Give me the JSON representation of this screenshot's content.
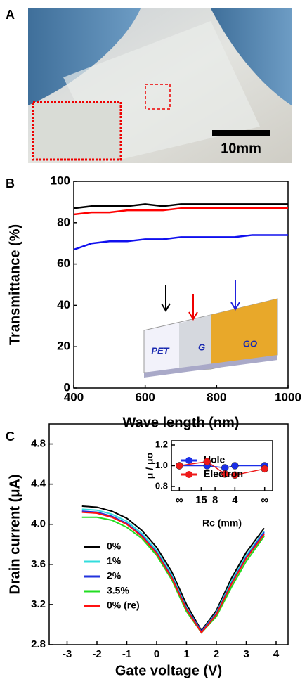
{
  "panel_labels": [
    "A",
    "B",
    "C"
  ],
  "photo": {
    "scale_bar": "10mm"
  },
  "chart_data": [
    {
      "type": "line",
      "xlabel": "Wave length (nm)",
      "ylabel": "Transmittance (%)",
      "xlim": [
        400,
        1000
      ],
      "ylim": [
        0,
        100
      ],
      "xticks": [
        400,
        600,
        800,
        1000
      ],
      "yticks": [
        0,
        20,
        40,
        60,
        80,
        100
      ],
      "x": [
        400,
        450,
        500,
        550,
        600,
        650,
        700,
        750,
        800,
        850,
        900,
        950,
        1000
      ],
      "series": [
        {
          "name": null,
          "color": "#000000",
          "values": [
            87,
            88,
            88,
            88,
            89,
            88,
            89,
            89,
            89,
            89,
            89,
            89,
            89
          ]
        },
        {
          "name": null,
          "color": "#ff0000",
          "values": [
            84,
            85,
            85,
            86,
            86,
            86,
            87,
            87,
            87,
            87,
            87,
            87,
            87
          ]
        },
        {
          "name": null,
          "color": "#1010ee",
          "values": [
            67,
            70,
            71,
            71,
            72,
            72,
            73,
            73,
            73,
            73,
            74,
            74,
            74
          ]
        }
      ],
      "annotations": [
        "PET",
        "G",
        "GO"
      ]
    },
    {
      "type": "line",
      "xlabel": "Gate voltage (V)",
      "ylabel": "Drain current (μA)",
      "xlim": [
        -3.6,
        4.4
      ],
      "ylim": [
        2.8,
        5.0
      ],
      "xticks": [
        -3,
        -2,
        -1,
        0,
        1,
        2,
        3,
        4
      ],
      "yticks": [
        {
          "value": 2.8,
          "label": "2.8"
        },
        {
          "value": 3.2,
          "label": "3.2"
        },
        {
          "value": 3.6,
          "label": "3.6"
        },
        {
          "value": 4.0,
          "label": "4.0"
        },
        {
          "value": 4.4,
          "label": "4.4"
        },
        {
          "value": 4.8,
          "label": "4.8"
        }
      ],
      "x": [
        -2.5,
        -2,
        -1.5,
        -1,
        -0.5,
        0,
        0.5,
        1,
        1.5,
        2,
        2.5,
        3,
        3.6
      ],
      "series": [
        {
          "name": "0%",
          "color": "#000000",
          "values": [
            4.18,
            4.17,
            4.13,
            4.06,
            3.94,
            3.77,
            3.53,
            3.2,
            2.94,
            3.14,
            3.46,
            3.72,
            3.96
          ]
        },
        {
          "name": "1%",
          "color": "#33dddd",
          "values": [
            4.15,
            4.14,
            4.1,
            4.03,
            3.91,
            3.74,
            3.5,
            3.17,
            2.93,
            3.12,
            3.43,
            3.69,
            3.93
          ]
        },
        {
          "name": "2%",
          "color": "#2233dd",
          "values": [
            4.13,
            4.12,
            4.08,
            4.01,
            3.89,
            3.72,
            3.48,
            3.16,
            2.93,
            3.11,
            3.41,
            3.67,
            3.92
          ]
        },
        {
          "name": "3.5%",
          "color": "#22dd22",
          "values": [
            4.07,
            4.07,
            4.04,
            3.97,
            3.86,
            3.69,
            3.45,
            3.13,
            2.92,
            3.08,
            3.37,
            3.63,
            3.88
          ]
        },
        {
          "name": "0% (re)",
          "color": "#ff1111",
          "values": [
            4.12,
            4.11,
            4.07,
            4.0,
            3.88,
            3.71,
            3.47,
            3.15,
            2.92,
            3.1,
            3.4,
            3.66,
            3.9
          ]
        }
      ]
    },
    {
      "type": "line",
      "xlabel": "Rc (mm)",
      "ylabel": "μ / μo",
      "xlim": [
        -0.4,
        4.7
      ],
      "ylim": [
        0.8,
        1.2
      ],
      "xticks": [
        {
          "value": 0,
          "label": "∞"
        },
        {
          "value": 1.1,
          "label": "15"
        },
        {
          "value": 1.8,
          "label": "8"
        },
        {
          "value": 2.8,
          "label": "4"
        },
        {
          "value": 4.3,
          "label": "∞"
        }
      ],
      "yticks": [
        {
          "value": 0.8,
          "label": "0.8"
        },
        {
          "value": 1.0,
          "label": "1.0"
        },
        {
          "value": 1.2,
          "label": "1.2"
        }
      ],
      "x": [
        0,
        1.4,
        2.3,
        2.8,
        4.3
      ],
      "series": [
        {
          "name": "Hole",
          "color": "#1a2ee8",
          "values": [
            1.0,
            1.0,
            0.98,
            1.0,
            1.0
          ]
        },
        {
          "name": "Electron",
          "color": "#ee1a1a",
          "values": [
            1.0,
            1.04,
            0.92,
            0.91,
            0.97
          ]
        }
      ]
    }
  ]
}
